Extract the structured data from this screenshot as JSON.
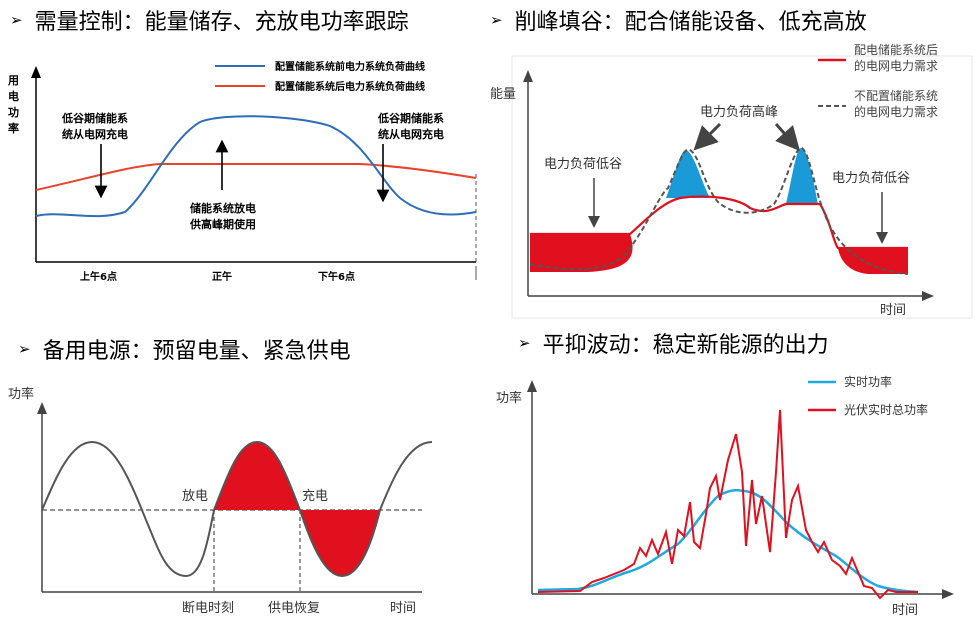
{
  "sections": [
    {
      "bullet": "➢",
      "title": "需量控制：能量储存、充放电功率跟踪"
    },
    {
      "bullet": "➢",
      "title": "削峰填谷：配合储能设备、低充高放"
    },
    {
      "bullet": "➢",
      "title": "备用电源：预留电量、紧急供电"
    },
    {
      "bullet": "➢",
      "title": "平抑波动：稳定新能源的出力"
    }
  ],
  "panel1": {
    "ylabel": [
      "用",
      "电",
      "功",
      "率"
    ],
    "legend_blue": "配置储能系统前电力系统负荷曲线",
    "legend_red": "配置储能系统后电力系统负荷曲线",
    "note_left": [
      "低谷期储能系",
      "统从电网充电"
    ],
    "note_center": [
      "储能系统放电",
      "供高峰期使用"
    ],
    "note_right": [
      "低谷期储能系",
      "统从电网充电"
    ],
    "xticks": [
      "上午6点",
      "正午",
      "下午6点"
    ],
    "colors": {
      "blue": "#2f6db8",
      "red": "#e8432b"
    }
  },
  "panel2": {
    "ylabel": "能量",
    "xlabel": "时间",
    "legend_red": [
      "配电储能系统后",
      "的电网电力需求"
    ],
    "legend_dash": [
      "不配置储能系统",
      "的电网电力需求"
    ],
    "label_peak": "电力负荷高峰",
    "label_valley_left": "电力负荷低谷",
    "label_valley_right": "电力负荷低谷",
    "colors": {
      "fill_red": "#e0101e",
      "fill_blue": "#1a9ad6"
    }
  },
  "panel3": {
    "ylabel": "功率",
    "xlabel": "时间",
    "label_discharge": "放电",
    "label_charge": "充电",
    "label_outage": "断电时刻",
    "label_restore": "供电恢复",
    "colors": {
      "fill_red": "#e0101e"
    }
  },
  "panel4": {
    "ylabel": "功率",
    "xlabel": "时间",
    "legend_blue": "实时功率",
    "legend_red": "光伏实时总功率",
    "colors": {
      "blue": "#1fa9e0",
      "red": "#e0101e"
    }
  }
}
